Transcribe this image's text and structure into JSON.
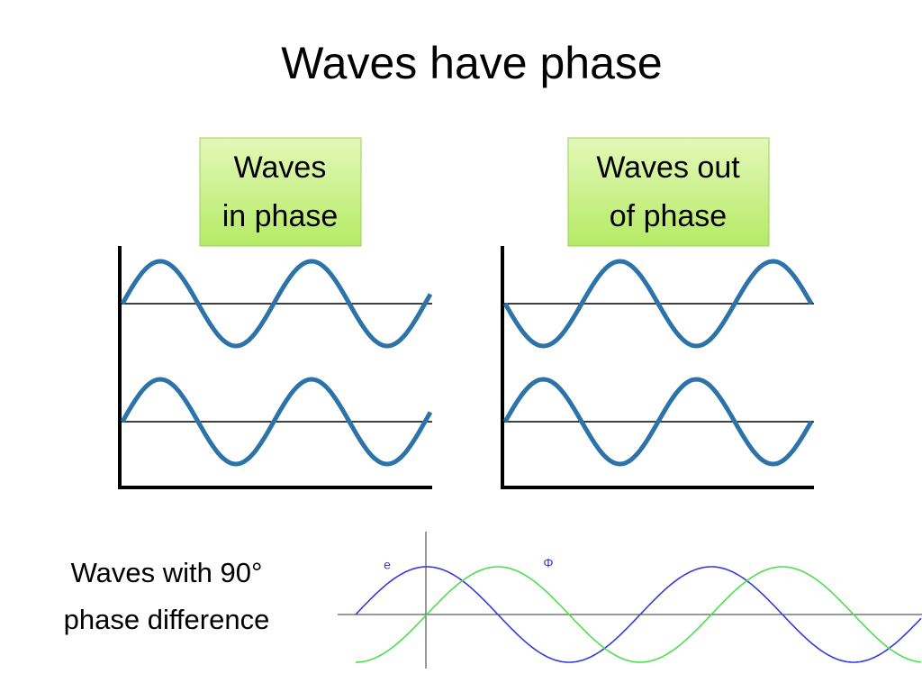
{
  "title": "Waves have phase",
  "boxes": [
    {
      "lines": [
        "Waves",
        "in phase"
      ]
    },
    {
      "lines": [
        "Waves out",
        "of phase"
      ]
    }
  ],
  "caption": {
    "lines": [
      "Waves  with 90°",
      "phase difference"
    ]
  },
  "plot_labels": [
    "e",
    "Φ"
  ]
}
